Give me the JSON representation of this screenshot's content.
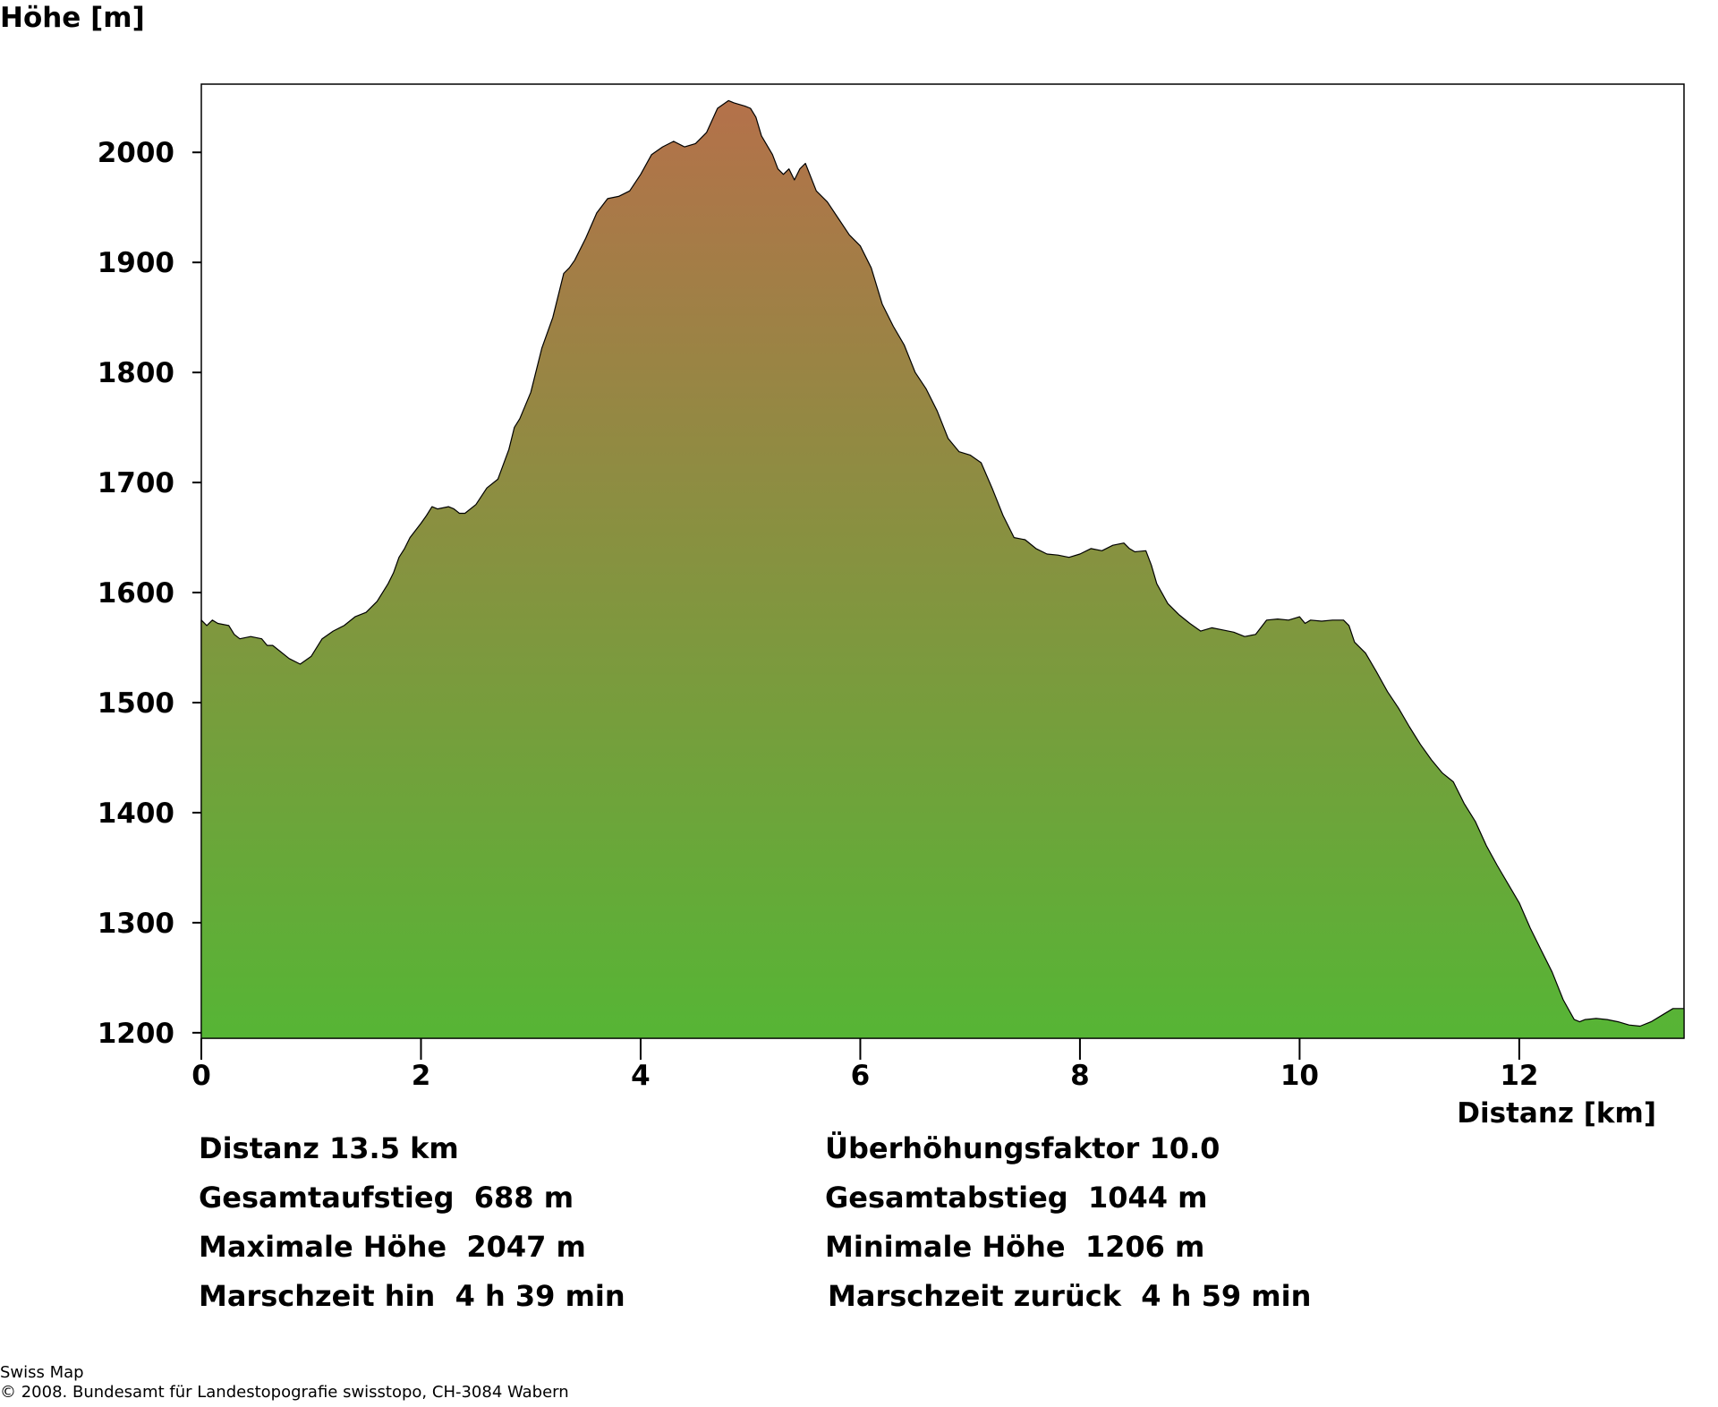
{
  "chart_data": {
    "type": "area",
    "ylabel": "Höhe [m]",
    "xlabel": "Distanz [km]",
    "xlim": [
      0,
      13.5
    ],
    "ylim": [
      1195,
      2062
    ],
    "xticks": [
      0,
      2,
      4,
      6,
      8,
      10,
      12
    ],
    "yticks": [
      1200,
      1300,
      1400,
      1500,
      1600,
      1700,
      1800,
      1900,
      2000
    ],
    "fill_gradient": {
      "top": "#b4714a",
      "bottom": "#56b535"
    },
    "series": [
      {
        "x": [
          0,
          0.05,
          0.1,
          0.15,
          0.25,
          0.3,
          0.35,
          0.45,
          0.55,
          0.6,
          0.65,
          0.7,
          0.8,
          0.9,
          1.0,
          1.1,
          1.2,
          1.3,
          1.4,
          1.5,
          1.6,
          1.7,
          1.75,
          1.8,
          1.85,
          1.9,
          2.0,
          2.05,
          2.1,
          2.15,
          2.25,
          2.3,
          2.35,
          2.4,
          2.5,
          2.6,
          2.7,
          2.8,
          2.85,
          2.9,
          3.0,
          3.1,
          3.2,
          3.3,
          3.35,
          3.4,
          3.5,
          3.6,
          3.7,
          3.8,
          3.9,
          4.0,
          4.1,
          4.2,
          4.3,
          4.4,
          4.5,
          4.6,
          4.7,
          4.8,
          4.85,
          4.95,
          5.0,
          5.05,
          5.1,
          5.2,
          5.25,
          5.3,
          5.35,
          5.4,
          5.45,
          5.5,
          5.6,
          5.7,
          5.8,
          5.9,
          6.0,
          6.1,
          6.2,
          6.3,
          6.4,
          6.5,
          6.6,
          6.7,
          6.8,
          6.9,
          7.0,
          7.1,
          7.2,
          7.3,
          7.4,
          7.5,
          7.6,
          7.7,
          7.8,
          7.9,
          8.0,
          8.1,
          8.2,
          8.3,
          8.4,
          8.45,
          8.5,
          8.6,
          8.65,
          8.7,
          8.8,
          8.9,
          9.0,
          9.1,
          9.2,
          9.3,
          9.4,
          9.5,
          9.6,
          9.7,
          9.8,
          9.9,
          10.0,
          10.05,
          10.1,
          10.2,
          10.3,
          10.4,
          10.45,
          10.5,
          10.6,
          10.7,
          10.8,
          10.9,
          11.0,
          11.1,
          11.2,
          11.3,
          11.4,
          11.5,
          11.6,
          11.7,
          11.8,
          11.9,
          12.0,
          12.1,
          12.2,
          12.3,
          12.4,
          12.5,
          12.55,
          12.6,
          12.7,
          12.8,
          12.9,
          13.0,
          13.1,
          13.2,
          13.3,
          13.4,
          13.5
        ],
        "values": [
          1575,
          1570,
          1575,
          1572,
          1570,
          1562,
          1558,
          1560,
          1558,
          1552,
          1552,
          1548,
          1540,
          1535,
          1542,
          1558,
          1565,
          1570,
          1578,
          1582,
          1592,
          1608,
          1618,
          1632,
          1640,
          1650,
          1663,
          1670,
          1678,
          1676,
          1678,
          1676,
          1672,
          1672,
          1680,
          1695,
          1703,
          1730,
          1750,
          1758,
          1782,
          1822,
          1850,
          1890,
          1895,
          1902,
          1922,
          1945,
          1958,
          1960,
          1965,
          1980,
          1998,
          2005,
          2010,
          2005,
          2008,
          2018,
          2040,
          2047,
          2045,
          2042,
          2040,
          2032,
          2015,
          1998,
          1985,
          1980,
          1985,
          1975,
          1985,
          1990,
          1965,
          1955,
          1940,
          1925,
          1915,
          1895,
          1862,
          1842,
          1825,
          1800,
          1785,
          1765,
          1740,
          1728,
          1725,
          1718,
          1695,
          1670,
          1650,
          1648,
          1640,
          1635,
          1634,
          1632,
          1635,
          1640,
          1638,
          1643,
          1645,
          1640,
          1637,
          1638,
          1625,
          1608,
          1590,
          1580,
          1572,
          1565,
          1568,
          1566,
          1564,
          1560,
          1562,
          1575,
          1576,
          1575,
          1578,
          1572,
          1575,
          1574,
          1575,
          1575,
          1570,
          1555,
          1545,
          1528,
          1510,
          1495,
          1478,
          1462,
          1448,
          1436,
          1428,
          1408,
          1392,
          1370,
          1352,
          1335,
          1318,
          1295,
          1275,
          1255,
          1230,
          1212,
          1210,
          1212,
          1213,
          1212,
          1210,
          1207,
          1206,
          1210,
          1216,
          1222,
          1222
        ]
      }
    ]
  },
  "stats": {
    "left": [
      "Distanz 13.5 km",
      "Gesamtaufstieg  688 m",
      "Maximale Höhe  2047 m",
      "Marschzeit hin  4 h 39 min"
    ],
    "right": [
      "Überhöhungsfaktor 10.0",
      "Gesamtabstieg  1044 m",
      "Minimale Höhe  1206 m",
      "Marschzeit zurück  4 h 59 min"
    ]
  },
  "credit": {
    "line1": "Swiss Map",
    "line2": "© 2008. Bundesamt für Landestopografie swisstopo, CH-3084 Wabern"
  }
}
